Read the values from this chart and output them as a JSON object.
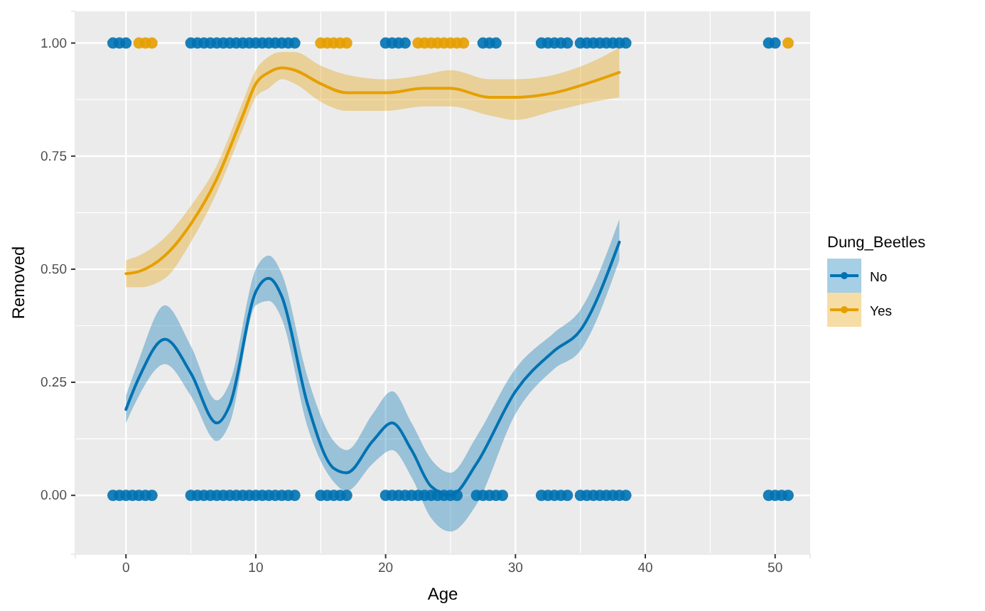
{
  "chart_data": {
    "type": "line",
    "xlabel": "Age",
    "ylabel": "Removed",
    "legend_title": "Dung_Beetles",
    "legend": "right",
    "grid": true,
    "line_style": "solid",
    "xlim": [
      -3.9,
      52.7
    ],
    "xticks": [
      0,
      10,
      20,
      30,
      40,
      50
    ],
    "ylim": [
      -0.13,
      1.07
    ],
    "yticks": [
      {
        "value": 0,
        "label": "0.00"
      },
      {
        "value": 0.25,
        "label": "0.25"
      },
      {
        "value": 0.5,
        "label": "0.50"
      },
      {
        "value": 0.75,
        "label": "0.75"
      },
      {
        "value": 1,
        "label": "1.00"
      }
    ],
    "series": [
      {
        "type": "scatter",
        "marker": "circle",
        "color": "#e69f00",
        "x": [
          1,
          1.5,
          2,
          15,
          15.5,
          16,
          16.5,
          17,
          22.5,
          23,
          23.5,
          24,
          24.5,
          25,
          25.5,
          26,
          51
        ],
        "values": [
          1,
          1,
          1,
          1,
          1,
          1,
          1,
          1,
          1,
          1,
          1,
          1,
          1,
          1,
          1,
          1,
          1
        ]
      },
      {
        "type": "scatter",
        "marker": "circle",
        "color": "#0072b2",
        "x": [
          -1,
          -0.5,
          0,
          0.5,
          1,
          1.5,
          2,
          5,
          5.5,
          6,
          6.5,
          7,
          7.5,
          8,
          8.5,
          9,
          9.5,
          10,
          10.5,
          11,
          11.5,
          12,
          12.5,
          13,
          15,
          15.5,
          16,
          16.5,
          17,
          20,
          20.5,
          21,
          21.5,
          22,
          22.5,
          23,
          23.5,
          24,
          24.5,
          25,
          25.5,
          27,
          27.5,
          28,
          28.5,
          29,
          32,
          32.5,
          33,
          33.5,
          34,
          35,
          35.5,
          36,
          36.5,
          37,
          37.5,
          38,
          38.5,
          49.5,
          50,
          50.5,
          51,
          -1,
          -0.5,
          0,
          5,
          5.5,
          6,
          6.5,
          7,
          7.5,
          8,
          8.5,
          9,
          9.5,
          10,
          10.5,
          11,
          11.5,
          12,
          12.5,
          13,
          20,
          20.5,
          21,
          21.5,
          27.5,
          28,
          28.5,
          32,
          32.5,
          33,
          33.5,
          34,
          35,
          35.5,
          36,
          36.5,
          37,
          37.5,
          38,
          38.5,
          49.5,
          50
        ],
        "values": [
          0,
          0,
          0,
          0,
          0,
          0,
          0,
          0,
          0,
          0,
          0,
          0,
          0,
          0,
          0,
          0,
          0,
          0,
          0,
          0,
          0,
          0,
          0,
          0,
          0,
          0,
          0,
          0,
          0,
          0,
          0,
          0,
          0,
          0,
          0,
          0,
          0,
          0,
          0,
          0,
          0,
          0,
          0,
          0,
          0,
          0,
          0,
          0,
          0,
          0,
          0,
          0,
          0,
          0,
          0,
          0,
          0,
          0,
          0,
          0,
          0,
          0,
          0,
          1,
          1,
          1,
          1,
          1,
          1,
          1,
          1,
          1,
          1,
          1,
          1,
          1,
          1,
          1,
          1,
          1,
          1,
          1,
          1,
          1,
          1,
          1,
          1,
          1,
          1,
          1,
          1,
          1,
          1,
          1,
          1,
          1,
          1,
          1,
          1,
          1,
          1,
          1,
          1,
          1,
          1
        ]
      },
      {
        "name": "No",
        "marker": "none",
        "color": "#0072b2",
        "x": [
          0,
          1,
          3,
          5,
          7,
          8,
          10,
          11,
          12,
          14,
          16,
          17,
          19,
          20.5,
          22,
          23.5,
          25,
          27,
          30,
          33,
          35,
          38
        ],
        "values": [
          0.19,
          0.26,
          0.345,
          0.27,
          0.16,
          0.2,
          0.45,
          0.48,
          0.44,
          0.2,
          0.06,
          0.05,
          0.12,
          0.16,
          0.1,
          0.02,
          0.0,
          0.07,
          0.23,
          0.32,
          0.365,
          0.56
        ],
        "lower": [
          0.16,
          0.22,
          0.29,
          0.22,
          0.12,
          0.16,
          0.42,
          0.43,
          0.39,
          0.15,
          0.03,
          0.01,
          0.07,
          0.1,
          0.04,
          -0.05,
          -0.08,
          -0.02,
          0.18,
          0.28,
          0.32,
          0.52
        ],
        "upper": [
          0.22,
          0.3,
          0.42,
          0.33,
          0.21,
          0.25,
          0.5,
          0.53,
          0.49,
          0.26,
          0.12,
          0.1,
          0.18,
          0.23,
          0.16,
          0.08,
          0.05,
          0.13,
          0.28,
          0.36,
          0.41,
          0.61
        ]
      },
      {
        "name": "Yes",
        "marker": "none",
        "color": "#e69f00",
        "x": [
          0,
          1,
          3,
          5,
          7,
          9,
          10,
          11,
          12,
          13,
          15,
          17,
          20,
          23,
          25,
          28,
          30,
          33,
          36,
          38
        ],
        "values": [
          0.49,
          0.495,
          0.53,
          0.6,
          0.7,
          0.84,
          0.91,
          0.935,
          0.945,
          0.94,
          0.91,
          0.89,
          0.89,
          0.9,
          0.9,
          0.88,
          0.88,
          0.89,
          0.915,
          0.935
        ],
        "lower": [
          0.46,
          0.46,
          0.48,
          0.56,
          0.67,
          0.81,
          0.88,
          0.9,
          0.92,
          0.91,
          0.87,
          0.85,
          0.85,
          0.86,
          0.86,
          0.84,
          0.83,
          0.85,
          0.87,
          0.88
        ],
        "upper": [
          0.52,
          0.53,
          0.57,
          0.64,
          0.73,
          0.87,
          0.94,
          0.97,
          0.98,
          0.98,
          0.95,
          0.93,
          0.92,
          0.93,
          0.94,
          0.92,
          0.92,
          0.93,
          0.96,
          0.99
        ]
      }
    ]
  }
}
